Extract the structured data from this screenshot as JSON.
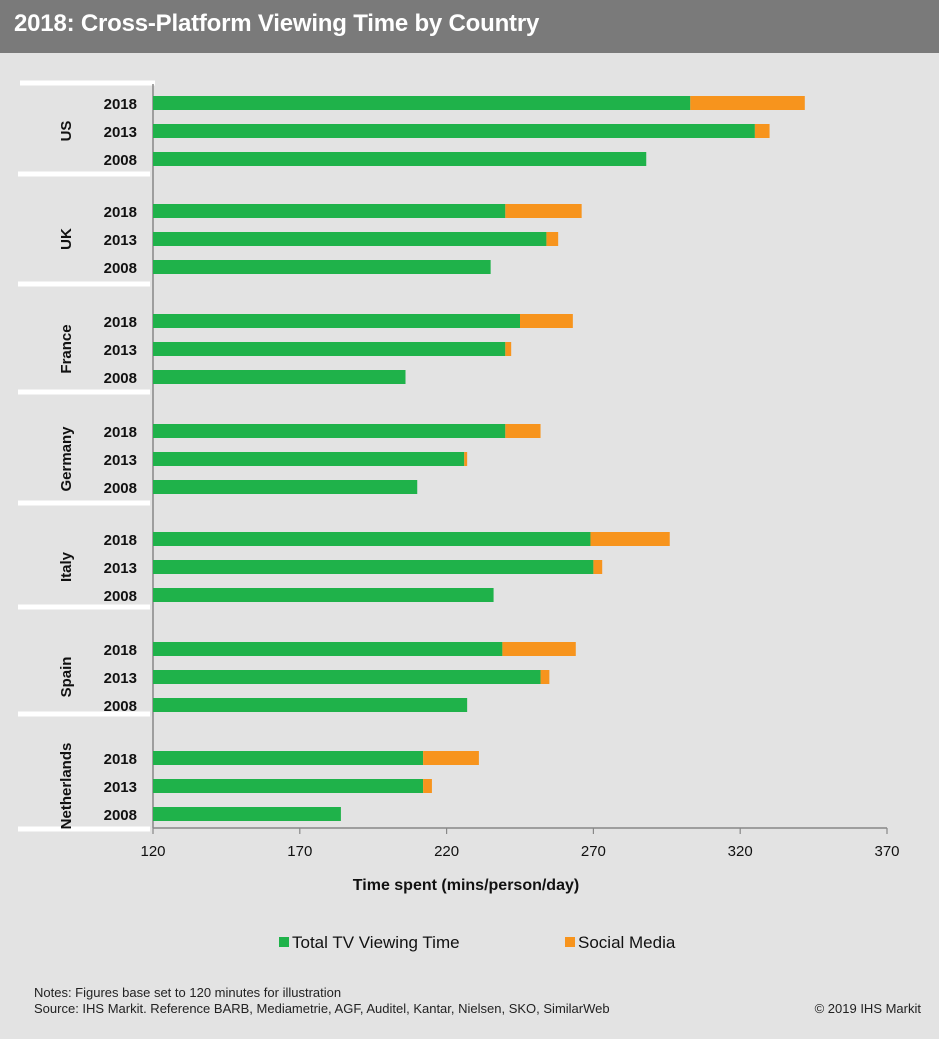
{
  "header": {
    "title": "2018: Cross-Platform Viewing Time by Country"
  },
  "footer": {
    "notes": "Notes: Figures base set to 120 minutes for illustration",
    "source": "Source: IHS Markit. Reference BARB, Mediametrie, AGF, Auditel, Kantar, Nielsen, SKO, SimilarWeb",
    "copyright": "© 2019 IHS Markit"
  },
  "colors": {
    "tv": "#1fb24a",
    "social": "#f7941d",
    "background": "#e3e3e3",
    "titlebar": "#7a7a7a"
  },
  "chart_data": {
    "type": "bar",
    "orientation": "horizontal",
    "stacked": true,
    "xlabel": "Time spent (mins/person/day)",
    "xlim": [
      120,
      370
    ],
    "xticks": [
      120,
      170,
      220,
      270,
      320,
      370
    ],
    "legend_position": "bottom",
    "series": [
      {
        "name": "Total TV Viewing Time",
        "color": "#1fb24a"
      },
      {
        "name": "Social Media",
        "color": "#f7941d"
      }
    ],
    "groups": [
      {
        "country": "US",
        "bars": [
          {
            "year": "2018",
            "tv": 303,
            "social": 39
          },
          {
            "year": "2013",
            "tv": 325,
            "social": 5
          },
          {
            "year": "2008",
            "tv": 288,
            "social": 0
          }
        ]
      },
      {
        "country": "UK",
        "bars": [
          {
            "year": "2018",
            "tv": 240,
            "social": 26
          },
          {
            "year": "2013",
            "tv": 254,
            "social": 4
          },
          {
            "year": "2008",
            "tv": 235,
            "social": 0
          }
        ]
      },
      {
        "country": "France",
        "bars": [
          {
            "year": "2018",
            "tv": 245,
            "social": 18
          },
          {
            "year": "2013",
            "tv": 240,
            "social": 2
          },
          {
            "year": "2008",
            "tv": 206,
            "social": 0
          }
        ]
      },
      {
        "country": "Germany",
        "bars": [
          {
            "year": "2018",
            "tv": 240,
            "social": 12
          },
          {
            "year": "2013",
            "tv": 226,
            "social": 1
          },
          {
            "year": "2008",
            "tv": 210,
            "social": 0
          }
        ]
      },
      {
        "country": "Italy",
        "bars": [
          {
            "year": "2018",
            "tv": 269,
            "social": 27
          },
          {
            "year": "2013",
            "tv": 270,
            "social": 3
          },
          {
            "year": "2008",
            "tv": 236,
            "social": 0
          }
        ]
      },
      {
        "country": "Spain",
        "bars": [
          {
            "year": "2018",
            "tv": 239,
            "social": 25
          },
          {
            "year": "2013",
            "tv": 252,
            "social": 3
          },
          {
            "year": "2008",
            "tv": 227,
            "social": 0
          }
        ]
      },
      {
        "country": "Netherlands",
        "bars": [
          {
            "year": "2018",
            "tv": 212,
            "social": 19
          },
          {
            "year": "2013",
            "tv": 212,
            "social": 3
          },
          {
            "year": "2008",
            "tv": 184,
            "social": 0
          }
        ]
      }
    ]
  }
}
